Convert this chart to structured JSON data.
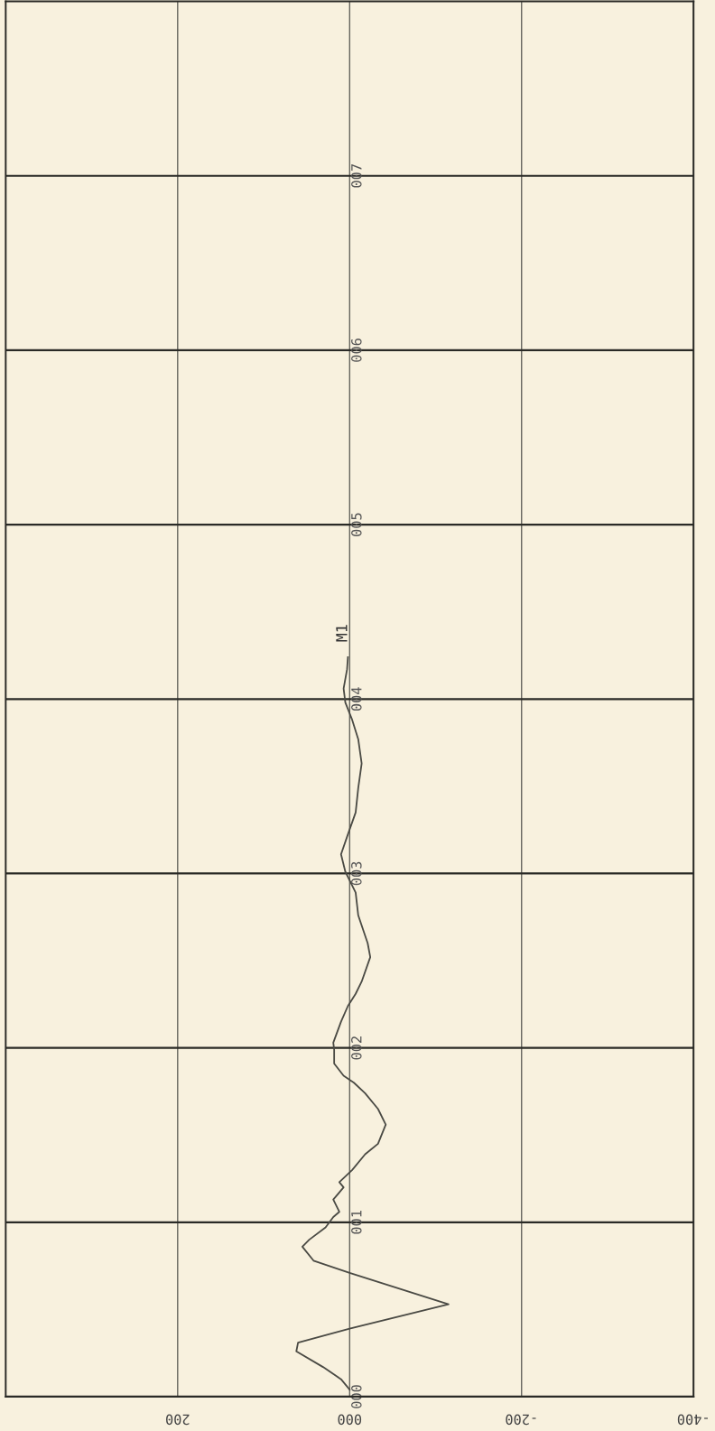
{
  "chart_data": {
    "type": "line",
    "grid": true,
    "marker": "none",
    "line_style": "solid",
    "xlim": [
      400,
      -400
    ],
    "xticks": [
      {
        "value": 200,
        "label": "200"
      },
      {
        "value": 0,
        "label": "000"
      },
      {
        "value": -200,
        "label": "-200"
      },
      {
        "value": -400,
        "label": "-400"
      }
    ],
    "ylim": [
      0,
      8
    ],
    "yticks": [
      {
        "value": 0,
        "label": "000"
      },
      {
        "value": 1,
        "label": "001"
      },
      {
        "value": 2,
        "label": "002"
      },
      {
        "value": 3,
        "label": "003"
      },
      {
        "value": 4,
        "label": "004"
      },
      {
        "value": 5,
        "label": "005"
      },
      {
        "value": 6,
        "label": "006"
      },
      {
        "value": 7,
        "label": "007"
      }
    ],
    "x": [
      0,
      10,
      31,
      62,
      60,
      0,
      -115,
      0,
      42,
      55,
      47,
      28,
      19,
      12,
      19,
      7,
      12,
      -3,
      -18,
      -33,
      -42,
      -33,
      -18,
      -5,
      7,
      18,
      18,
      19,
      10,
      2,
      -7,
      -14,
      -24,
      -21,
      -10,
      -7,
      5,
      10,
      3,
      -7,
      -10,
      -14,
      -10,
      -3,
      5,
      7,
      3,
      2
    ],
    "series": [
      {
        "color": "#4a4a44",
        "values": [
          0.04,
          0.1,
          0.17,
          0.26,
          0.31,
          0.39,
          0.53,
          0.71,
          0.78,
          0.86,
          0.9,
          0.97,
          1.03,
          1.06,
          1.13,
          1.2,
          1.23,
          1.3,
          1.39,
          1.45,
          1.56,
          1.65,
          1.74,
          1.8,
          1.84,
          1.91,
          1.99,
          2.03,
          2.15,
          2.24,
          2.31,
          2.38,
          2.52,
          2.6,
          2.76,
          2.89,
          3.01,
          3.11,
          3.21,
          3.35,
          3.49,
          3.63,
          3.77,
          3.88,
          3.98,
          4.06,
          4.17,
          4.24
        ]
      }
    ],
    "annotations": [
      {
        "text": "M1",
        "x": 2,
        "y": 4.24
      }
    ]
  }
}
